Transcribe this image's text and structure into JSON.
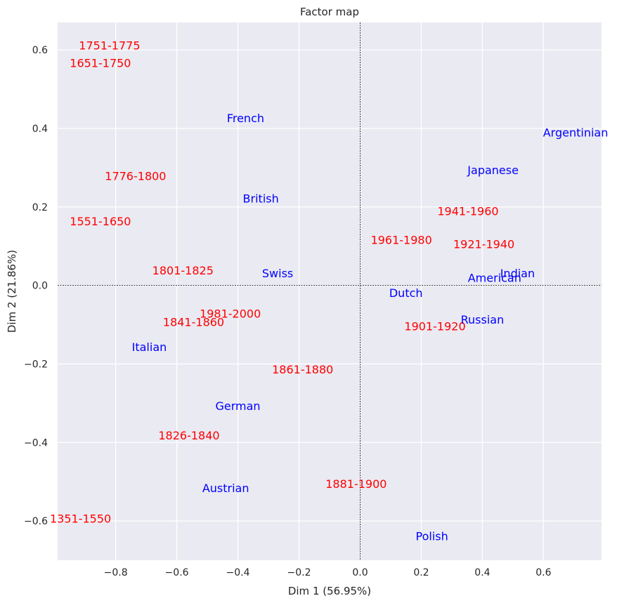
{
  "chart_data": {
    "type": "scatter",
    "title": "Factor map",
    "xlabel": "Dim 1 (56.95%)",
    "ylabel": "Dim 2 (21.86%)",
    "xlim": [
      -0.99,
      0.79
    ],
    "ylim": [
      -0.7,
      0.67
    ],
    "grid": true,
    "x_ticks": [
      -0.8,
      -0.6,
      -0.4,
      -0.2,
      0.0,
      0.2,
      0.4,
      0.6
    ],
    "x_tick_labels": [
      "−0.8",
      "−0.6",
      "−0.4",
      "−0.2",
      "0.0",
      "0.2",
      "0.4",
      "0.6"
    ],
    "y_ticks": [
      -0.6,
      -0.4,
      -0.2,
      0.0,
      0.2,
      0.4,
      0.6
    ],
    "y_tick_labels": [
      "−0.6",
      "−0.4",
      "−0.2",
      "0.0",
      "0.2",
      "0.4",
      "0.6"
    ],
    "reference_lines": {
      "x": 0,
      "y": 0
    },
    "series": [
      {
        "color": "#ff0000",
        "points": [
          {
            "label": "1751-1775",
            "x": -0.82,
            "y": 0.61
          },
          {
            "label": "1651-1750",
            "x": -0.85,
            "y": 0.565
          },
          {
            "label": "1776-1800",
            "x": -0.735,
            "y": 0.277
          },
          {
            "label": "1551-1650",
            "x": -0.85,
            "y": 0.162
          },
          {
            "label": "1801-1825",
            "x": -0.58,
            "y": 0.037
          },
          {
            "label": "1981-2000",
            "x": -0.425,
            "y": -0.073
          },
          {
            "label": "1841-1860",
            "x": -0.545,
            "y": -0.095
          },
          {
            "label": "1861-1880",
            "x": -0.188,
            "y": -0.215
          },
          {
            "label": "1826-1840",
            "x": -0.56,
            "y": -0.383
          },
          {
            "label": "1881-1900",
            "x": -0.013,
            "y": -0.507
          },
          {
            "label": "1351-1550",
            "x": -0.915,
            "y": -0.595
          },
          {
            "label": "1961-1980",
            "x": 0.135,
            "y": 0.115
          },
          {
            "label": "1941-1960",
            "x": 0.353,
            "y": 0.188
          },
          {
            "label": "1921-1940",
            "x": 0.405,
            "y": 0.104
          },
          {
            "label": "1901-1920",
            "x": 0.245,
            "y": -0.105
          }
        ]
      },
      {
        "color": "#0000ff",
        "points": [
          {
            "label": "French",
            "x": -0.375,
            "y": 0.425
          },
          {
            "label": "British",
            "x": -0.325,
            "y": 0.22
          },
          {
            "label": "Swiss",
            "x": -0.27,
            "y": 0.03
          },
          {
            "label": "Italian",
            "x": -0.69,
            "y": -0.158
          },
          {
            "label": "German",
            "x": -0.4,
            "y": -0.308
          },
          {
            "label": "Austrian",
            "x": -0.44,
            "y": -0.518
          },
          {
            "label": "Dutch",
            "x": 0.15,
            "y": -0.02
          },
          {
            "label": "Polish",
            "x": 0.235,
            "y": -0.64
          },
          {
            "label": "Argentinian",
            "x": 0.705,
            "y": 0.388
          },
          {
            "label": "Japanese",
            "x": 0.435,
            "y": 0.293
          },
          {
            "label": "Indian",
            "x": 0.515,
            "y": 0.03
          },
          {
            "label": "American",
            "x": 0.44,
            "y": 0.018
          },
          {
            "label": "Russian",
            "x": 0.4,
            "y": -0.088
          }
        ]
      }
    ]
  }
}
